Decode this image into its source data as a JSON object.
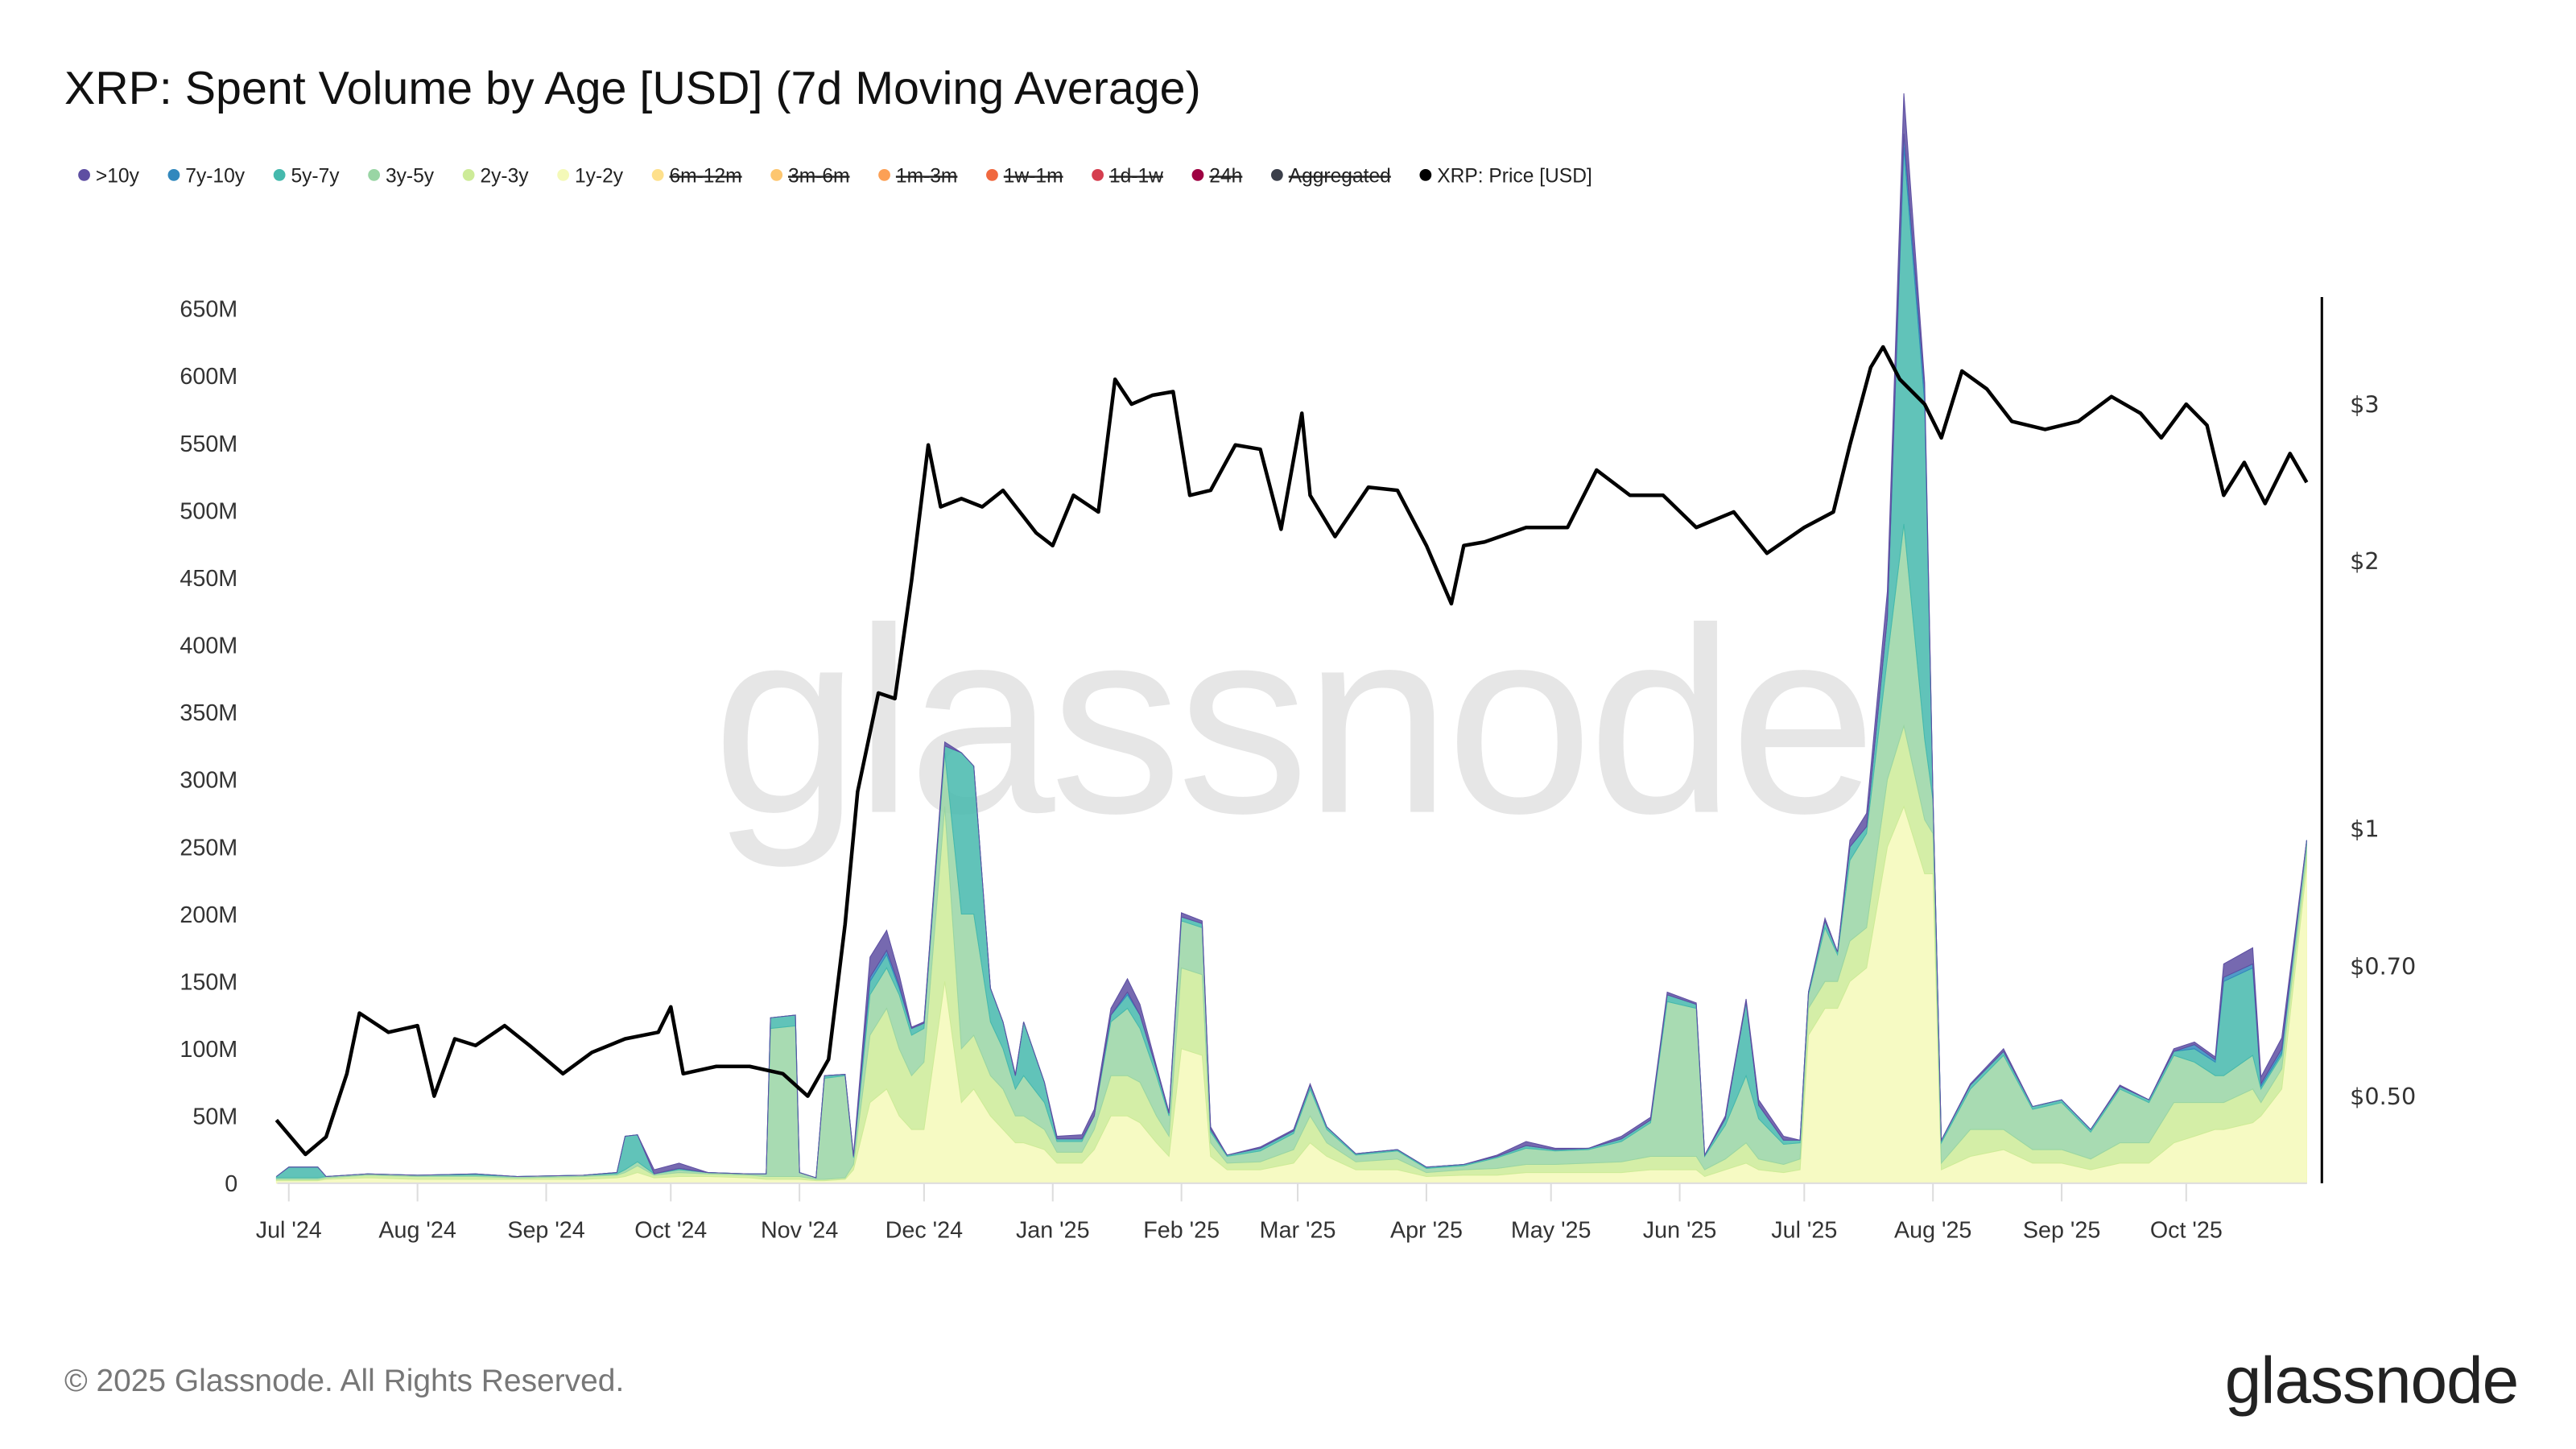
{
  "title": "XRP: Spent Volume by Age [USD] (7d Moving Average)",
  "legend": [
    {
      "label": ">10y",
      "color": "#5e4fa2",
      "enabled": true
    },
    {
      "label": "7y-10y",
      "color": "#3288bd",
      "enabled": true
    },
    {
      "label": "5y-7y",
      "color": "#45b9ad",
      "enabled": true
    },
    {
      "label": "3y-5y",
      "color": "#99d5a4",
      "enabled": true
    },
    {
      "label": "2y-3y",
      "color": "#cdeb98",
      "enabled": true
    },
    {
      "label": "1y-2y",
      "color": "#f4f9b8",
      "enabled": true
    },
    {
      "label": "6m-12m",
      "color": "#fee08b",
      "enabled": false
    },
    {
      "label": "3m-6m",
      "color": "#fdc66f",
      "enabled": false
    },
    {
      "label": "1m-3m",
      "color": "#fca055",
      "enabled": false
    },
    {
      "label": "1w-1m",
      "color": "#f0683f",
      "enabled": false
    },
    {
      "label": "1d-1w",
      "color": "#d53e4f",
      "enabled": false
    },
    {
      "label": "24h",
      "color": "#9e0142",
      "enabled": false
    },
    {
      "label": "Aggregated",
      "color": "#3b3f4a",
      "enabled": false
    },
    {
      "label": "XRP: Price [USD]",
      "color": "#000000",
      "enabled": true
    }
  ],
  "watermark": "glassnode",
  "footer": {
    "copyright": "© 2025 Glassnode. All Rights Reserved.",
    "logo": "glassnode"
  },
  "chart_data": {
    "type": "area",
    "stacked": true,
    "title": "XRP: Spent Volume by Age [USD] (7d Moving Average)",
    "y_left": {
      "ticks": [
        "0",
        "50M",
        "100M",
        "150M",
        "200M",
        "250M",
        "300M",
        "350M",
        "400M",
        "450M",
        "500M",
        "550M",
        "600M",
        "650M"
      ],
      "range": [
        0,
        650
      ],
      "unit": "M USD"
    },
    "y_right": {
      "scale": "log",
      "ticks": [
        {
          "label": "$3",
          "value": 3
        },
        {
          "label": "$2",
          "value": 2
        },
        {
          "label": "$1",
          "value": 1
        },
        {
          "label": "$0.70",
          "value": 0.7
        },
        {
          "label": "$0.50",
          "value": 0.5
        }
      ]
    },
    "x_ticks": [
      {
        "label": "Jul '24",
        "date": "2024-07-01"
      },
      {
        "label": "Aug '24",
        "date": "2024-08-01"
      },
      {
        "label": "Sep '24",
        "date": "2024-09-01"
      },
      {
        "label": "Oct '24",
        "date": "2024-10-01"
      },
      {
        "label": "Nov '24",
        "date": "2024-11-01"
      },
      {
        "label": "Dec '24",
        "date": "2024-12-01"
      },
      {
        "label": "Jan '25",
        "date": "2025-01-01"
      },
      {
        "label": "Feb '25",
        "date": "2025-02-01"
      },
      {
        "label": "Mar '25",
        "date": "2025-03-01"
      },
      {
        "label": "Apr '25",
        "date": "2025-04-01"
      },
      {
        "label": "May '25",
        "date": "2025-05-01"
      },
      {
        "label": "Jun '25",
        "date": "2025-06-01"
      },
      {
        "label": "Jul '25",
        "date": "2025-07-01"
      },
      {
        "label": "Aug '25",
        "date": "2025-08-01"
      },
      {
        "label": "Sep '25",
        "date": "2025-09-01"
      },
      {
        "label": "Oct '25",
        "date": "2025-10-01"
      }
    ],
    "grid": false,
    "legend_position": "top-left",
    "x": [
      "2024-06-28",
      "2024-07-01",
      "2024-07-08",
      "2024-07-10",
      "2024-07-20",
      "2024-08-01",
      "2024-08-15",
      "2024-08-25",
      "2024-09-10",
      "2024-09-18",
      "2024-09-20",
      "2024-09-23",
      "2024-09-27",
      "2024-10-03",
      "2024-10-10",
      "2024-10-20",
      "2024-10-24",
      "2024-10-25",
      "2024-10-31",
      "2024-11-01",
      "2024-11-05",
      "2024-11-07",
      "2024-11-12",
      "2024-11-14",
      "2024-11-18",
      "2024-11-22",
      "2024-11-25",
      "2024-11-28",
      "2024-12-01",
      "2024-12-06",
      "2024-12-10",
      "2024-12-13",
      "2024-12-17",
      "2024-12-20",
      "2024-12-23",
      "2024-12-25",
      "2024-12-30",
      "2025-01-02",
      "2025-01-08",
      "2025-01-11",
      "2025-01-15",
      "2025-01-19",
      "2025-01-22",
      "2025-01-26",
      "2025-01-29",
      "2025-02-01",
      "2025-02-06",
      "2025-02-08",
      "2025-02-12",
      "2025-02-20",
      "2025-02-28",
      "2025-03-04",
      "2025-03-08",
      "2025-03-15",
      "2025-03-25",
      "2025-04-01",
      "2025-04-10",
      "2025-04-18",
      "2025-04-25",
      "2025-05-02",
      "2025-05-10",
      "2025-05-18",
      "2025-05-25",
      "2025-05-29",
      "2025-06-05",
      "2025-06-07",
      "2025-06-12",
      "2025-06-17",
      "2025-06-20",
      "2025-06-26",
      "2025-06-30",
      "2025-07-02",
      "2025-07-06",
      "2025-07-09",
      "2025-07-12",
      "2025-07-16",
      "2025-07-21",
      "2025-07-25",
      "2025-07-30",
      "2025-08-01",
      "2025-08-03",
      "2025-08-10",
      "2025-08-18",
      "2025-08-25",
      "2025-09-01",
      "2025-09-08",
      "2025-09-15",
      "2025-09-22",
      "2025-09-28",
      "2025-10-03",
      "2025-10-08",
      "2025-10-10",
      "2025-10-17",
      "2025-10-19",
      "2025-10-24",
      "2025-10-30"
    ],
    "series": [
      {
        "name": "1y-2y",
        "values": [
          2,
          2,
          2,
          3,
          4,
          3,
          3,
          3,
          3,
          4,
          5,
          8,
          4,
          5,
          5,
          4,
          3,
          3,
          3,
          3,
          2,
          2,
          3,
          10,
          60,
          70,
          50,
          40,
          40,
          150,
          60,
          70,
          50,
          40,
          30,
          30,
          25,
          15,
          15,
          25,
          50,
          50,
          45,
          30,
          20,
          100,
          95,
          20,
          10,
          10,
          15,
          30,
          20,
          10,
          10,
          5,
          6,
          6,
          8,
          8,
          8,
          8,
          10,
          10,
          10,
          5,
          10,
          15,
          10,
          8,
          10,
          110,
          130,
          130,
          150,
          160,
          250,
          280,
          230,
          230,
          10,
          20,
          25,
          15,
          15,
          10,
          15,
          15,
          30,
          35,
          40,
          40,
          45,
          50,
          70,
          235
        ]
      },
      {
        "name": "2y-3y",
        "values": [
          1,
          1,
          1,
          1,
          2,
          2,
          2,
          1,
          2,
          2,
          3,
          5,
          2,
          3,
          2,
          2,
          2,
          2,
          2,
          2,
          1,
          1,
          1,
          4,
          50,
          60,
          50,
          40,
          50,
          130,
          40,
          40,
          30,
          30,
          20,
          20,
          15,
          8,
          8,
          15,
          30,
          30,
          30,
          20,
          15,
          60,
          60,
          10,
          5,
          6,
          10,
          20,
          10,
          6,
          8,
          3,
          4,
          5,
          6,
          6,
          7,
          8,
          10,
          10,
          10,
          5,
          8,
          15,
          8,
          6,
          8,
          20,
          20,
          20,
          30,
          30,
          50,
          60,
          40,
          30,
          5,
          20,
          15,
          10,
          10,
          8,
          15,
          15,
          30,
          25,
          20,
          20,
          25,
          10,
          15,
          10
        ]
      },
      {
        "name": "3y-5y",
        "values": [
          1,
          1,
          1,
          1,
          1,
          1,
          1,
          1,
          1,
          1,
          2,
          3,
          1,
          2,
          1,
          1,
          2,
          110,
          112,
          3,
          1,
          75,
          76,
          5,
          30,
          30,
          40,
          30,
          25,
          40,
          100,
          90,
          40,
          30,
          20,
          30,
          20,
          8,
          8,
          10,
          40,
          50,
          40,
          30,
          15,
          35,
          35,
          8,
          5,
          8,
          12,
          20,
          10,
          5,
          6,
          3,
          3,
          8,
          12,
          10,
          10,
          15,
          25,
          115,
          110,
          10,
          25,
          50,
          30,
          15,
          12,
          10,
          40,
          20,
          60,
          70,
          90,
          150,
          60,
          25,
          15,
          30,
          55,
          30,
          35,
          20,
          40,
          30,
          35,
          30,
          20,
          20,
          25,
          10,
          10,
          8
        ]
      },
      {
        "name": "5y-7y",
        "values": [
          1,
          8,
          8,
          0,
          0,
          0,
          1,
          0,
          0,
          1,
          25,
          20,
          0,
          1,
          0,
          0,
          0,
          8,
          8,
          0,
          0,
          2,
          1,
          1,
          10,
          10,
          5,
          5,
          4,
          5,
          120,
          110,
          25,
          20,
          10,
          40,
          15,
          2,
          2,
          0,
          5,
          10,
          10,
          5,
          2,
          3,
          3,
          2,
          1,
          2,
          2,
          3,
          2,
          1,
          1,
          1,
          1,
          1,
          2,
          1,
          1,
          2,
          2,
          5,
          3,
          1,
          5,
          55,
          10,
          3,
          2,
          2,
          5,
          2,
          10,
          5,
          30,
          280,
          250,
          5,
          2,
          3,
          3,
          2,
          2,
          2,
          2,
          2,
          3,
          10,
          10,
          70,
          65,
          2,
          2,
          2
        ]
      },
      {
        "name": "7y-10y",
        "values": [
          0,
          0,
          0,
          0,
          0,
          0,
          0,
          0,
          0,
          0,
          0,
          0,
          0,
          0,
          0,
          0,
          0,
          0,
          0,
          0,
          0,
          0,
          0,
          0,
          3,
          3,
          2,
          0,
          0,
          0,
          0,
          0,
          0,
          0,
          0,
          0,
          0,
          0,
          0,
          0,
          0,
          2,
          0,
          0,
          0,
          0,
          0,
          0,
          0,
          0,
          0,
          0,
          0,
          0,
          0,
          0,
          0,
          0,
          0,
          0,
          0,
          0,
          0,
          0,
          0,
          0,
          0,
          0,
          0,
          0,
          0,
          0,
          0,
          0,
          0,
          0,
          0,
          10,
          10,
          0,
          0,
          0,
          0,
          0,
          0,
          0,
          0,
          0,
          0,
          3,
          2,
          3,
          3,
          2,
          3,
          0
        ]
      },
      {
        "name": ">10y",
        "values": [
          0,
          0,
          0,
          0,
          0,
          0,
          0,
          0,
          0,
          0,
          0,
          0,
          3,
          4,
          0,
          0,
          0,
          0,
          0,
          0,
          0,
          0,
          0,
          1,
          15,
          15,
          8,
          1,
          1,
          3,
          0,
          0,
          0,
          0,
          1,
          0,
          0,
          2,
          3,
          5,
          5,
          10,
          8,
          2,
          1,
          3,
          2,
          2,
          0,
          1,
          1,
          1,
          0,
          0,
          0,
          0,
          0,
          1,
          3,
          1,
          0,
          2,
          2,
          2,
          1,
          0,
          2,
          2,
          4,
          3,
          0,
          0,
          2,
          0,
          5,
          10,
          20,
          30,
          5,
          0,
          0,
          1,
          2,
          0,
          0,
          0,
          1,
          0,
          2,
          2,
          2,
          10,
          12,
          5,
          8,
          0
        ]
      }
    ],
    "price": {
      "name": "XRP: Price [USD]",
      "x": [
        "2024-06-28",
        "2024-07-05",
        "2024-07-10",
        "2024-07-15",
        "2024-07-18",
        "2024-07-25",
        "2024-08-01",
        "2024-08-05",
        "2024-08-10",
        "2024-08-15",
        "2024-08-22",
        "2024-08-28",
        "2024-09-05",
        "2024-09-12",
        "2024-09-20",
        "2024-09-28",
        "2024-10-01",
        "2024-10-04",
        "2024-10-12",
        "2024-10-20",
        "2024-10-28",
        "2024-11-03",
        "2024-11-08",
        "2024-11-12",
        "2024-11-15",
        "2024-11-20",
        "2024-11-24",
        "2024-11-28",
        "2024-12-02",
        "2024-12-05",
        "2024-12-10",
        "2024-12-15",
        "2024-12-20",
        "2024-12-28",
        "2025-01-01",
        "2025-01-06",
        "2025-01-12",
        "2025-01-16",
        "2025-01-20",
        "2025-01-25",
        "2025-01-30",
        "2025-02-03",
        "2025-02-08",
        "2025-02-14",
        "2025-02-20",
        "2025-02-25",
        "2025-03-02",
        "2025-03-04",
        "2025-03-10",
        "2025-03-18",
        "2025-03-25",
        "2025-04-01",
        "2025-04-07",
        "2025-04-10",
        "2025-04-15",
        "2025-04-25",
        "2025-05-05",
        "2025-05-12",
        "2025-05-20",
        "2025-05-28",
        "2025-06-05",
        "2025-06-14",
        "2025-06-22",
        "2025-07-01",
        "2025-07-08",
        "2025-07-12",
        "2025-07-17",
        "2025-07-20",
        "2025-07-24",
        "2025-07-30",
        "2025-08-03",
        "2025-08-08",
        "2025-08-14",
        "2025-08-20",
        "2025-08-28",
        "2025-09-05",
        "2025-09-13",
        "2025-09-20",
        "2025-09-25",
        "2025-10-01",
        "2025-10-06",
        "2025-10-10",
        "2025-10-15",
        "2025-10-20",
        "2025-10-26",
        "2025-10-30"
      ],
      "values": [
        0.47,
        0.43,
        0.45,
        0.53,
        0.62,
        0.59,
        0.6,
        0.5,
        0.58,
        0.57,
        0.6,
        0.57,
        0.53,
        0.56,
        0.58,
        0.59,
        0.63,
        0.53,
        0.54,
        0.54,
        0.53,
        0.5,
        0.55,
        0.78,
        1.1,
        1.42,
        1.4,
        1.9,
        2.7,
        2.3,
        2.35,
        2.3,
        2.4,
        2.15,
        2.08,
        2.37,
        2.27,
        3.2,
        3.0,
        3.07,
        3.1,
        2.37,
        2.4,
        2.7,
        2.67,
        2.17,
        2.93,
        2.37,
        2.13,
        2.42,
        2.4,
        2.08,
        1.79,
        2.08,
        2.1,
        2.18,
        2.18,
        2.53,
        2.37,
        2.37,
        2.18,
        2.27,
        2.04,
        2.18,
        2.27,
        2.7,
        3.3,
        3.48,
        3.2,
        3.0,
        2.75,
        3.27,
        3.12,
        2.87,
        2.81,
        2.87,
        3.06,
        2.93,
        2.75,
        3.0,
        2.84,
        2.37,
        2.58,
        2.32,
        2.64,
        2.45
      ]
    }
  }
}
